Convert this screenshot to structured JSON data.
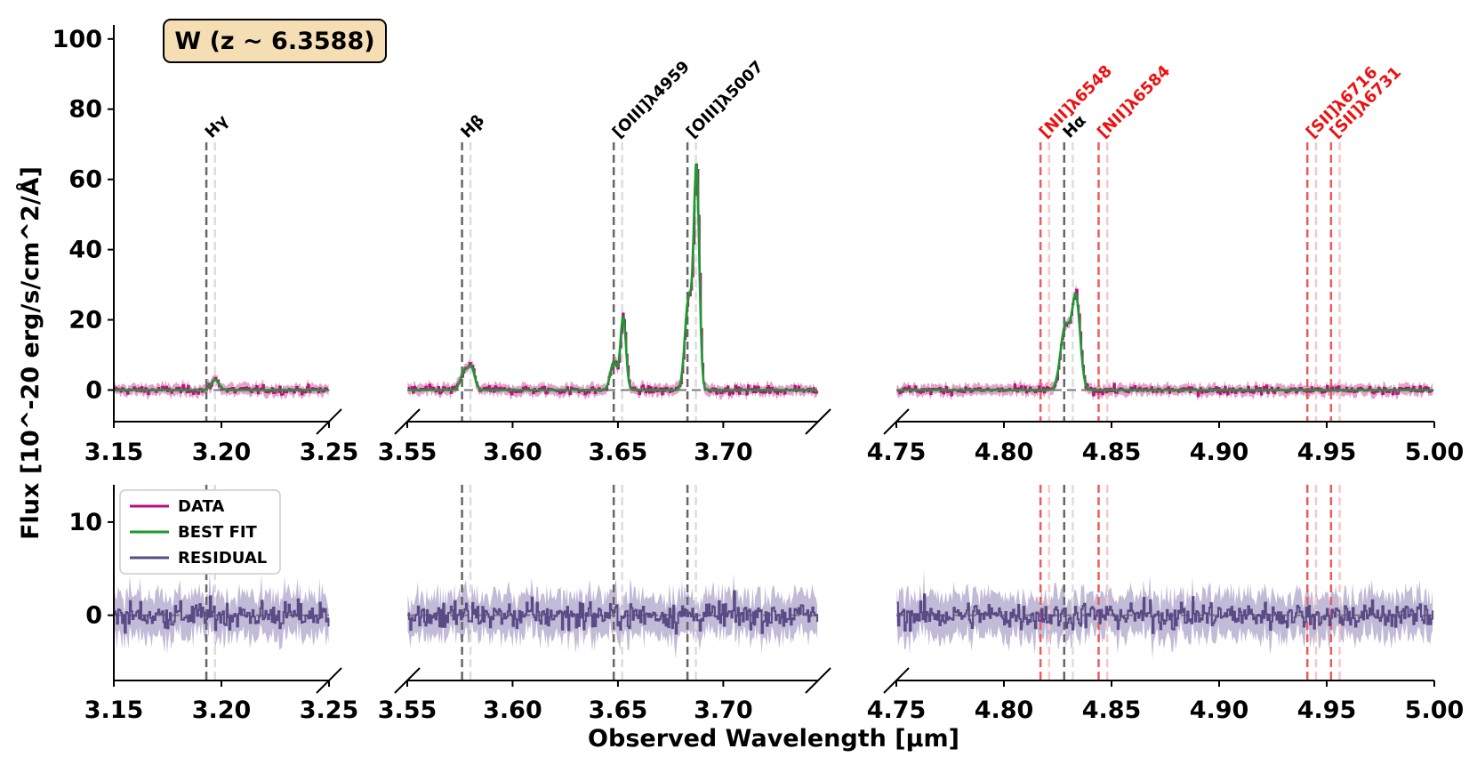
{
  "chart_data": {
    "type": "line",
    "title": "W (z ~ 6.3588)",
    "xlabel": "Observed Wavelength [μm]",
    "ylabel": "Flux [10^-20 erg/s/cm^2/Å]",
    "colors": {
      "data": "#b5127a",
      "data_band": "#c9589d",
      "best_fit": "#1a9a2f",
      "residual": "#5a4a86",
      "residual_band": "#a79ec6",
      "black_line": "#666666",
      "black_line_light": "#dddddd",
      "red_line": "#f05a5a",
      "red_line_light": "#f8c8c8",
      "title_box_fill": "#f5deb3"
    },
    "legend": {
      "placement": "upper-left of residual panel",
      "entries": [
        {
          "label": "DATA",
          "color": "#b5127a"
        },
        {
          "label": "BEST FIT",
          "color": "#1a9a2f"
        },
        {
          "label": "RESIDUAL",
          "color": "#5a4a86"
        }
      ]
    },
    "segments": [
      {
        "xlim": [
          3.15,
          3.25
        ],
        "xticks": [
          "3.15",
          "3.20",
          "3.25"
        ],
        "xtick_values": [
          3.15,
          3.2,
          3.25
        ]
      },
      {
        "xlim": [
          3.55,
          3.745
        ],
        "xticks": [
          "3.55",
          "3.60",
          "3.65",
          "3.70"
        ],
        "xtick_values": [
          3.55,
          3.6,
          3.65,
          3.7
        ]
      },
      {
        "xlim": [
          4.75,
          5.0
        ],
        "xticks": [
          "4.75",
          "4.80",
          "4.85",
          "4.90",
          "4.95",
          "5.00"
        ],
        "xtick_values": [
          4.75,
          4.8,
          4.85,
          4.9,
          4.95,
          5.0
        ]
      }
    ],
    "flux_panel": {
      "ylim": [
        -9,
        104
      ],
      "yticks": [
        "0",
        "20",
        "40",
        "60",
        "80",
        "100"
      ],
      "ytick_values": [
        0,
        20,
        40,
        60,
        80,
        100
      ]
    },
    "residual_panel": {
      "ylim": [
        -7,
        14
      ],
      "yticks": [
        "0",
        "10"
      ],
      "ytick_values": [
        0,
        10
      ]
    },
    "emission_lines": [
      {
        "label": "Hγ",
        "x": 3.193,
        "color": "black"
      },
      {
        "label": "Hβ",
        "x": 3.576,
        "color": "black"
      },
      {
        "label": "[OIII]λ4959",
        "x": 3.648,
        "color": "black"
      },
      {
        "label": "[OIII]λ5007",
        "x": 3.683,
        "color": "black"
      },
      {
        "label": "[NII]λ6548",
        "x": 4.817,
        "color": "red"
      },
      {
        "label": "Hα",
        "x": 4.828,
        "color": "black"
      },
      {
        "label": "[NII]λ6584",
        "x": 4.844,
        "color": "red"
      },
      {
        "label": "[SII]λ6716",
        "x": 4.941,
        "color": "red"
      },
      {
        "label": "[SII]λ6731",
        "x": 4.952,
        "color": "red"
      }
    ],
    "line_offset_um": 0.004,
    "peaks": [
      {
        "center": 3.197,
        "amp": 3,
        "sigma": 0.0018
      },
      {
        "center": 3.577,
        "amp": 5,
        "sigma": 0.0018
      },
      {
        "center": 3.5805,
        "amp": 6,
        "sigma": 0.0016
      },
      {
        "center": 3.648,
        "amp": 8,
        "sigma": 0.0016
      },
      {
        "center": 3.6525,
        "amp": 21,
        "sigma": 0.0013
      },
      {
        "center": 3.6835,
        "amp": 26,
        "sigma": 0.0017
      },
      {
        "center": 3.6873,
        "amp": 63,
        "sigma": 0.0013
      },
      {
        "center": 4.8285,
        "amp": 18,
        "sigma": 0.0022
      },
      {
        "center": 4.8335,
        "amp": 26,
        "sigma": 0.0019
      }
    ]
  }
}
